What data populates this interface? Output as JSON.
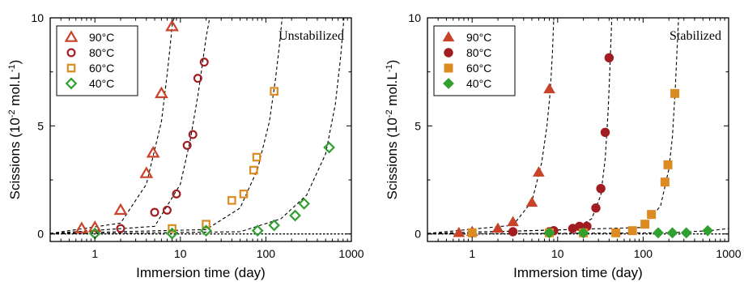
{
  "chart_data": [
    {
      "type": "scatter",
      "title": "",
      "annotation": "Unstabilized",
      "xlabel": "Immersion time (day)",
      "ylabel": "Scissions (10-2 mol.L-1)",
      "ylabel_parts": {
        "base": "Scissions (10",
        "exp1": "-2",
        "mid": " mol.L",
        "exp2": "-1",
        "end": ")"
      },
      "xscale": "log",
      "xlim": [
        0.3,
        1000
      ],
      "ylim": [
        -0.35,
        10
      ],
      "xticks": [
        1,
        10,
        100,
        1000
      ],
      "xticklabels": [
        "1",
        "10",
        "100",
        "1000"
      ],
      "yticks": [
        0,
        5,
        10
      ],
      "yticklabels": [
        "0",
        "5",
        "10"
      ],
      "legend_position": "top-left",
      "marker_fill": "hollow",
      "series": [
        {
          "name": "90°C",
          "marker": "triangle",
          "color": "#c8432a",
          "x": [
            0.7,
            1,
            2,
            4,
            4.8,
            6,
            8
          ],
          "y": [
            0.25,
            0.3,
            1.1,
            2.8,
            3.75,
            6.5,
            9.6
          ],
          "fit_x": [
            0.3,
            2,
            4,
            6,
            7,
            7.6,
            8.1,
            8.5
          ],
          "fit_y": [
            0.02,
            0.5,
            2.3,
            5.2,
            7.4,
            8.7,
            9.8,
            10
          ]
        },
        {
          "name": "80°C",
          "marker": "circle",
          "color": "#a11d21",
          "x": [
            2,
            5,
            7,
            9,
            12,
            14,
            16,
            19
          ],
          "y": [
            0.25,
            1.0,
            1.1,
            1.85,
            4.1,
            4.6,
            7.2,
            7.95
          ],
          "fit_x": [
            0.3,
            5,
            10,
            13,
            16,
            18,
            20,
            22
          ],
          "fit_y": [
            0.02,
            0.35,
            2.3,
            4.3,
            6.4,
            7.8,
            9.1,
            10
          ]
        },
        {
          "name": "60°C",
          "marker": "square",
          "color": "#dc8a22",
          "x": [
            8,
            20,
            40,
            55,
            72,
            78,
            125
          ],
          "y": [
            0.25,
            0.45,
            1.55,
            1.85,
            2.95,
            3.55,
            6.6
          ],
          "fit_x": [
            0.3,
            20,
            50,
            80,
            110,
            130,
            145,
            155
          ],
          "fit_y": [
            0.02,
            0.2,
            1.2,
            3.0,
            5.2,
            7.2,
            8.8,
            10
          ]
        },
        {
          "name": "40°C",
          "marker": "diamond",
          "color": "#30a030",
          "x": [
            1,
            8,
            20,
            80,
            125,
            220,
            280,
            550
          ],
          "y": [
            0.02,
            0.02,
            0.15,
            0.15,
            0.4,
            0.85,
            1.4,
            4.0
          ],
          "fit_x": [
            0.3,
            50,
            150,
            300,
            500,
            650,
            750,
            820
          ],
          "fit_y": [
            0.0,
            0.1,
            0.7,
            1.8,
            3.7,
            6.0,
            8.2,
            10
          ]
        }
      ]
    },
    {
      "type": "scatter",
      "title": "",
      "annotation": "Stabilized",
      "xlabel": "Immersion time (day)",
      "ylabel": "Scissions (10-2 mol.L-1)",
      "ylabel_parts": {
        "base": "Scissions (10",
        "exp1": "-2",
        "mid": " mol.L",
        "exp2": "-1",
        "end": ")"
      },
      "xscale": "log",
      "xlim": [
        0.3,
        1000
      ],
      "ylim": [
        -0.35,
        10
      ],
      "xticks": [
        1,
        10,
        100,
        1000
      ],
      "xticklabels": [
        "1",
        "10",
        "100",
        "1000"
      ],
      "yticks": [
        0,
        5,
        10
      ],
      "yticklabels": [
        "0",
        "5",
        "10"
      ],
      "legend_position": "top-left",
      "marker_fill": "filled",
      "series": [
        {
          "name": "90°C",
          "marker": "triangle",
          "color": "#c8432a",
          "x": [
            0.7,
            1,
            2,
            3,
            5,
            6,
            8
          ],
          "y": [
            0.05,
            0.1,
            0.25,
            0.55,
            1.45,
            2.85,
            6.7
          ],
          "fit_x": [
            0.3,
            3,
            5,
            6.5,
            7.5,
            8.2,
            8.7,
            9.0
          ],
          "fit_y": [
            0.02,
            0.4,
            1.5,
            3.3,
            5.0,
            6.6,
            8.4,
            10
          ]
        },
        {
          "name": "80°C",
          "marker": "circle",
          "color": "#a11d21",
          "x": [
            3,
            8,
            9,
            15,
            18,
            22,
            28,
            32,
            36,
            40
          ],
          "y": [
            0.1,
            0.1,
            0.15,
            0.25,
            0.35,
            0.35,
            1.2,
            2.1,
            4.7,
            8.15
          ],
          "fit_x": [
            0.3,
            15,
            25,
            32,
            36,
            39,
            41,
            43
          ],
          "fit_y": [
            0.02,
            0.2,
            0.7,
            1.8,
            3.5,
            5.7,
            7.8,
            10
          ]
        },
        {
          "name": "60°C",
          "marker": "square",
          "color": "#dc8a22",
          "x": [
            1,
            8,
            20,
            48,
            75,
            105,
            125,
            180,
            195,
            235
          ],
          "y": [
            0.05,
            0.05,
            0.05,
            0.05,
            0.15,
            0.45,
            0.9,
            2.4,
            3.2,
            6.5
          ],
          "fit_x": [
            0.3,
            100,
            160,
            200,
            220,
            238,
            250,
            260
          ],
          "fit_y": [
            0.02,
            0.3,
            1.3,
            3.0,
            4.5,
            6.8,
            8.6,
            10
          ]
        },
        {
          "name": "40°C",
          "marker": "diamond",
          "color": "#30a030",
          "x": [
            8,
            20,
            150,
            220,
            320,
            570
          ],
          "y": [
            0.05,
            0.05,
            0.05,
            0.05,
            0.05,
            0.15
          ],
          "fit_x": [
            0.3,
            200,
            600,
            1000
          ],
          "fit_y": [
            0.0,
            0.05,
            0.15,
            0.25
          ]
        }
      ]
    }
  ]
}
